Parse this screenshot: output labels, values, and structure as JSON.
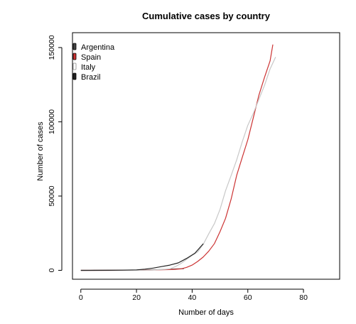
{
  "chart_data": {
    "type": "line",
    "title": "Cumulative cases by country",
    "xlabel": "Number of days",
    "ylabel": "Number of cases",
    "xlim": [
      -3,
      93
    ],
    "ylim": [
      -6000,
      160000
    ],
    "xticks": [
      0,
      20,
      40,
      60,
      80
    ],
    "yticks": [
      0,
      50000,
      100000,
      150000
    ],
    "grid": false,
    "legend_position": "top-left",
    "series": [
      {
        "name": "Argentina",
        "color": "#444444",
        "legend_symbol": "filled-box",
        "x": [
          0,
          5,
          10,
          15,
          20,
          25,
          30,
          35,
          37
        ],
        "y": [
          0,
          10,
          30,
          70,
          150,
          300,
          600,
          1000,
          1100
        ]
      },
      {
        "name": "Spain",
        "color": "#cc3333",
        "legend_symbol": "filled-box",
        "x": [
          0,
          10,
          20,
          24,
          28,
          32,
          34,
          36,
          38,
          40,
          42,
          44,
          46,
          48,
          50,
          52,
          54,
          56,
          58,
          60,
          62,
          64,
          66,
          68,
          69
        ],
        "y": [
          0,
          0,
          5,
          100,
          300,
          500,
          700,
          1000,
          2000,
          3500,
          6000,
          9000,
          13000,
          18000,
          26000,
          35000,
          48000,
          64000,
          76000,
          88000,
          103000,
          118000,
          130000,
          141000,
          152000
        ]
      },
      {
        "name": "Italy",
        "color": "#c8c8c8",
        "legend_symbol": "open-box",
        "x": [
          0,
          10,
          20,
          25,
          30,
          32,
          34,
          36,
          38,
          40,
          42,
          44,
          46,
          48,
          50,
          52,
          54,
          56,
          58,
          60,
          62,
          64,
          66,
          68,
          70
        ],
        "y": [
          0,
          0,
          5,
          100,
          650,
          1000,
          2500,
          4600,
          7400,
          10100,
          12400,
          17600,
          24700,
          31500,
          41000,
          53600,
          63900,
          74400,
          86500,
          97700,
          105800,
          115200,
          124600,
          135600,
          143600
        ]
      },
      {
        "name": "Brazil",
        "color": "#222222",
        "legend_symbol": "filled-box",
        "x": [
          0,
          10,
          15,
          20,
          23,
          26,
          29,
          32,
          35,
          38,
          41,
          44
        ],
        "y": [
          0,
          50,
          100,
          300,
          800,
          1500,
          2500,
          3500,
          5000,
          8000,
          11500,
          17900
        ]
      }
    ]
  }
}
